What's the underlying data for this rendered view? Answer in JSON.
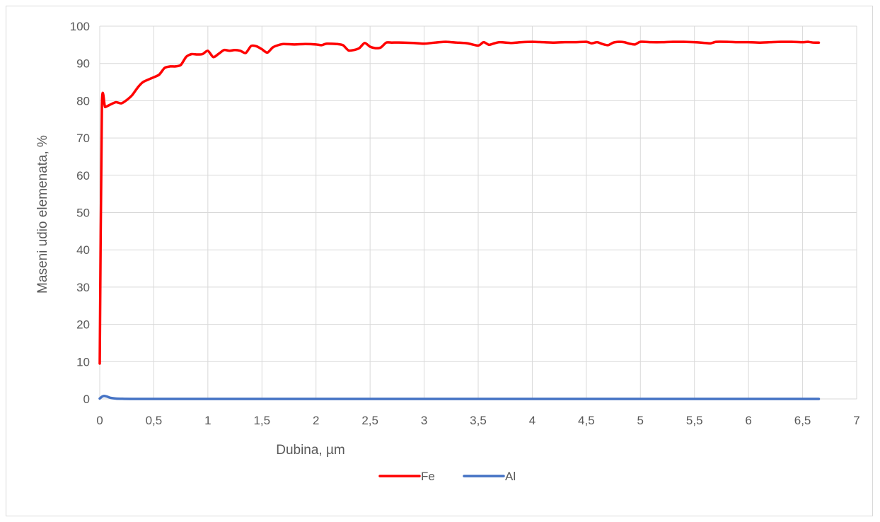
{
  "chart_data": {
    "type": "line",
    "title": "",
    "xlabel": "Dubina, µm",
    "ylabel": "Maseni udio elemenata, %",
    "xlim": [
      0,
      7
    ],
    "ylim": [
      0,
      100
    ],
    "x_ticks": [
      "0",
      "0,5",
      "1",
      "1,5",
      "2",
      "2,5",
      "3",
      "3,5",
      "4",
      "4,5",
      "5",
      "5,5",
      "6",
      "6,5",
      "7"
    ],
    "y_ticks": [
      "0",
      "10",
      "20",
      "30",
      "40",
      "50",
      "60",
      "70",
      "80",
      "90",
      "100"
    ],
    "grid": true,
    "legend_position": "bottom",
    "series": [
      {
        "name": "Fe",
        "color": "#ff0000",
        "points": [
          [
            0,
            9.5
          ],
          [
            0.02,
            78.5
          ],
          [
            0.05,
            78.3
          ],
          [
            0.1,
            79
          ],
          [
            0.15,
            79.6
          ],
          [
            0.2,
            79.3
          ],
          [
            0.25,
            80.2
          ],
          [
            0.3,
            81.5
          ],
          [
            0.35,
            83.5
          ],
          [
            0.4,
            85
          ],
          [
            0.5,
            86.3
          ],
          [
            0.55,
            87
          ],
          [
            0.6,
            88.8
          ],
          [
            0.65,
            89.2
          ],
          [
            0.7,
            89.2
          ],
          [
            0.75,
            89.6
          ],
          [
            0.8,
            91.8
          ],
          [
            0.85,
            92.5
          ],
          [
            0.9,
            92.4
          ],
          [
            0.95,
            92.5
          ],
          [
            1.0,
            93.4
          ],
          [
            1.05,
            91.7
          ],
          [
            1.1,
            92.6
          ],
          [
            1.15,
            93.6
          ],
          [
            1.2,
            93.4
          ],
          [
            1.25,
            93.6
          ],
          [
            1.3,
            93.4
          ],
          [
            1.35,
            92.8
          ],
          [
            1.4,
            94.7
          ],
          [
            1.45,
            94.6
          ],
          [
            1.5,
            93.8
          ],
          [
            1.55,
            92.9
          ],
          [
            1.6,
            94.3
          ],
          [
            1.65,
            94.9
          ],
          [
            1.7,
            95.2
          ],
          [
            1.8,
            95.1
          ],
          [
            1.9,
            95.2
          ],
          [
            2.0,
            95.1
          ],
          [
            2.05,
            94.9
          ],
          [
            2.1,
            95.3
          ],
          [
            2.2,
            95.2
          ],
          [
            2.25,
            94.9
          ],
          [
            2.3,
            93.5
          ],
          [
            2.35,
            93.6
          ],
          [
            2.4,
            94.1
          ],
          [
            2.45,
            95.5
          ],
          [
            2.5,
            94.5
          ],
          [
            2.55,
            94.1
          ],
          [
            2.6,
            94.3
          ],
          [
            2.65,
            95.6
          ],
          [
            2.7,
            95.6
          ],
          [
            2.8,
            95.6
          ],
          [
            2.9,
            95.5
          ],
          [
            3.0,
            95.3
          ],
          [
            3.1,
            95.6
          ],
          [
            3.2,
            95.8
          ],
          [
            3.3,
            95.6
          ],
          [
            3.4,
            95.4
          ],
          [
            3.5,
            94.8
          ],
          [
            3.55,
            95.7
          ],
          [
            3.6,
            95
          ],
          [
            3.65,
            95.4
          ],
          [
            3.7,
            95.7
          ],
          [
            3.8,
            95.5
          ],
          [
            3.9,
            95.7
          ],
          [
            4.0,
            95.8
          ],
          [
            4.1,
            95.7
          ],
          [
            4.2,
            95.6
          ],
          [
            4.3,
            95.7
          ],
          [
            4.4,
            95.7
          ],
          [
            4.5,
            95.8
          ],
          [
            4.55,
            95.4
          ],
          [
            4.6,
            95.7
          ],
          [
            4.65,
            95.2
          ],
          [
            4.7,
            94.9
          ],
          [
            4.75,
            95.6
          ],
          [
            4.8,
            95.8
          ],
          [
            4.85,
            95.7
          ],
          [
            4.9,
            95.3
          ],
          [
            4.95,
            95.1
          ],
          [
            5.0,
            95.8
          ],
          [
            5.1,
            95.7
          ],
          [
            5.2,
            95.7
          ],
          [
            5.3,
            95.8
          ],
          [
            5.4,
            95.8
          ],
          [
            5.5,
            95.7
          ],
          [
            5.6,
            95.5
          ],
          [
            5.65,
            95.4
          ],
          [
            5.7,
            95.8
          ],
          [
            5.8,
            95.8
          ],
          [
            5.9,
            95.7
          ],
          [
            6.0,
            95.7
          ],
          [
            6.1,
            95.6
          ],
          [
            6.2,
            95.7
          ],
          [
            6.3,
            95.8
          ],
          [
            6.4,
            95.8
          ],
          [
            6.5,
            95.7
          ],
          [
            6.55,
            95.8
          ],
          [
            6.6,
            95.6
          ],
          [
            6.65,
            95.6
          ]
        ]
      },
      {
        "name": "Al",
        "color": "#4472c4",
        "points": [
          [
            0,
            0.1
          ],
          [
            0.02,
            0.6
          ],
          [
            0.04,
            0.8
          ],
          [
            0.07,
            0.6
          ],
          [
            0.1,
            0.3
          ],
          [
            0.15,
            0.1
          ],
          [
            0.2,
            0.05
          ],
          [
            0.3,
            0
          ],
          [
            1,
            0
          ],
          [
            2,
            0
          ],
          [
            3,
            0
          ],
          [
            4,
            0
          ],
          [
            5,
            0
          ],
          [
            6,
            0
          ],
          [
            6.65,
            0
          ]
        ]
      }
    ]
  }
}
